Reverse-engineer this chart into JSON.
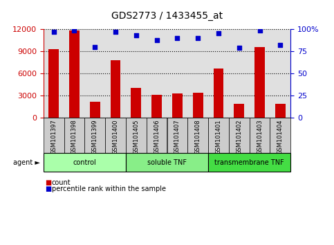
{
  "title": "GDS2773 / 1433455_at",
  "categories": [
    "GSM101397",
    "GSM101398",
    "GSM101399",
    "GSM101400",
    "GSM101405",
    "GSM101406",
    "GSM101407",
    "GSM101408",
    "GSM101401",
    "GSM101402",
    "GSM101403",
    "GSM101404"
  ],
  "bar_values": [
    9300,
    11900,
    2200,
    7800,
    4000,
    3100,
    3300,
    3400,
    6700,
    1900,
    9600,
    1900
  ],
  "dot_values": [
    97,
    99,
    80,
    97,
    93,
    88,
    90,
    90,
    96,
    79,
    99,
    82
  ],
  "bar_color": "#cc0000",
  "dot_color": "#0000cc",
  "ylim_left": [
    0,
    12000
  ],
  "ylim_right": [
    0,
    100
  ],
  "yticks_left": [
    0,
    3000,
    6000,
    9000,
    12000
  ],
  "yticks_right": [
    0,
    25,
    50,
    75,
    100
  ],
  "yticklabels_right": [
    "0",
    "25",
    "50",
    "75",
    "100%"
  ],
  "groups": [
    {
      "label": "control",
      "start": 0,
      "end": 3,
      "color": "#aaffaa"
    },
    {
      "label": "soluble TNF",
      "start": 4,
      "end": 7,
      "color": "#88ee88"
    },
    {
      "label": "transmembrane TNF",
      "start": 8,
      "end": 11,
      "color": "#44dd44"
    }
  ],
  "agent_label": "agent",
  "legend_items": [
    {
      "label": "count",
      "color": "#cc0000"
    },
    {
      "label": "percentile rank within the sample",
      "color": "#0000cc"
    }
  ],
  "grid_color": "black",
  "left_tick_color": "#cc0000",
  "right_tick_color": "#0000cc",
  "bar_width": 0.5,
  "bg_plot": "#e0e0e0",
  "bg_xticklabel": "#cccccc",
  "title_fontsize": 10,
  "tick_fontsize": 8,
  "label_fontsize": 7,
  "xtick_fontsize": 6
}
